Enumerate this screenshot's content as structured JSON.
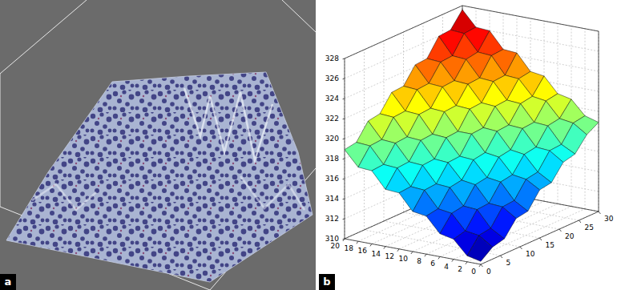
{
  "figure": {
    "panel_labels": [
      "a",
      "b"
    ]
  },
  "chart_data": {
    "type": "surface",
    "x": [
      0,
      3,
      6,
      9,
      12,
      15,
      18,
      21,
      24,
      27,
      30
    ],
    "y": [
      0,
      2,
      4,
      6,
      8,
      10,
      12,
      14,
      16,
      18,
      20
    ],
    "values": [
      [
        310.3,
        311.2,
        311.5,
        313.0,
        313.2,
        314.8,
        315.0,
        316.5,
        316.8,
        318.2,
        318.9
      ],
      [
        310.6,
        312.1,
        312.3,
        313.9,
        314.0,
        315.6,
        315.8,
        317.4,
        317.5,
        319.1,
        319.3
      ],
      [
        312.0,
        312.3,
        313.9,
        314.0,
        315.6,
        315.8,
        317.3,
        317.5,
        319.1,
        319.3,
        320.7
      ],
      [
        312.3,
        313.8,
        314.0,
        315.6,
        315.8,
        317.3,
        317.5,
        319.1,
        319.2,
        320.8,
        321.0
      ],
      [
        313.8,
        314.0,
        315.6,
        315.8,
        317.3,
        317.5,
        319.1,
        319.2,
        320.8,
        321.0,
        322.5
      ],
      [
        314.0,
        315.6,
        315.7,
        317.3,
        317.4,
        319.1,
        319.2,
        320.8,
        320.9,
        322.5,
        322.7
      ],
      [
        315.6,
        315.7,
        317.3,
        317.4,
        319.0,
        319.1,
        320.8,
        320.9,
        322.5,
        322.6,
        324.3
      ],
      [
        315.7,
        317.3,
        317.4,
        319.0,
        319.1,
        320.8,
        320.9,
        322.5,
        322.6,
        324.3,
        324.4
      ],
      [
        317.3,
        317.4,
        319.0,
        319.1,
        320.8,
        320.9,
        322.5,
        322.6,
        324.2,
        324.4,
        326.0
      ],
      [
        317.4,
        319.0,
        319.1,
        320.8,
        320.9,
        322.5,
        322.6,
        324.2,
        324.3,
        326.0,
        326.1
      ],
      [
        318.9,
        319.1,
        320.7,
        320.9,
        322.5,
        322.6,
        324.2,
        324.3,
        326.0,
        326.1,
        327.6
      ]
    ],
    "xlim": [
      0,
      30
    ],
    "ylim": [
      0,
      20
    ],
    "zlim": [
      310,
      328
    ],
    "xticks": [
      0,
      5,
      10,
      15,
      20,
      25,
      30
    ],
    "yticks": [
      0,
      2,
      4,
      6,
      8,
      10,
      12,
      14,
      16,
      18,
      20
    ],
    "zticks": [
      310,
      312,
      314,
      316,
      318,
      320,
      322,
      324,
      326,
      328
    ],
    "grid": true
  }
}
